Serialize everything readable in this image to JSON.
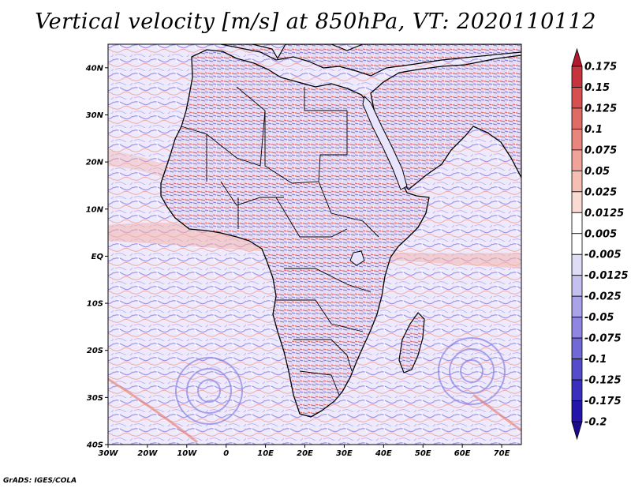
{
  "title": "Vertical velocity [m/s] at 850hPa, VT: 2020110112",
  "footer": "GrADS: IGES/COLA",
  "map": {
    "lon_range": [
      -30,
      75
    ],
    "lat_range": [
      -40,
      45
    ],
    "lon_ticks": [
      "30W",
      "20W",
      "10W",
      "0",
      "10E",
      "20E",
      "30E",
      "40E",
      "50E",
      "60E",
      "70E"
    ],
    "lat_ticks": [
      "40N",
      "30N",
      "20N",
      "10N",
      "EQ",
      "10S",
      "20S",
      "30S",
      "40S"
    ],
    "region": "Africa, Middle East, Atlantic and Indian Ocean"
  },
  "colorbar": {
    "levels": [
      "0.175",
      "0.15",
      "0.125",
      "0.1",
      "0.075",
      "0.05",
      "0.025",
      "0.0125",
      "0.005",
      "-0.005",
      "-0.0125",
      "-0.025",
      "-0.05",
      "-0.075",
      "-0.1",
      "-0.125",
      "-0.175",
      "-0.2"
    ],
    "colors": [
      "#b2182b",
      "#c6343c",
      "#d6504f",
      "#e06b65",
      "#e8867e",
      "#f0a398",
      "#f5bfb4",
      "#f9dbd3",
      "#ffffff",
      "#ffffff",
      "#dedcf7",
      "#c4c0f0",
      "#a9a3e8",
      "#8e86e0",
      "#7268d6",
      "#564bca",
      "#3a2ebd",
      "#2515a8",
      "#1a0a90"
    ]
  },
  "colors": {
    "positive": "#d6504f",
    "negative": "#6a62dc",
    "background": "#f2f0fc",
    "coast": "#000000"
  }
}
